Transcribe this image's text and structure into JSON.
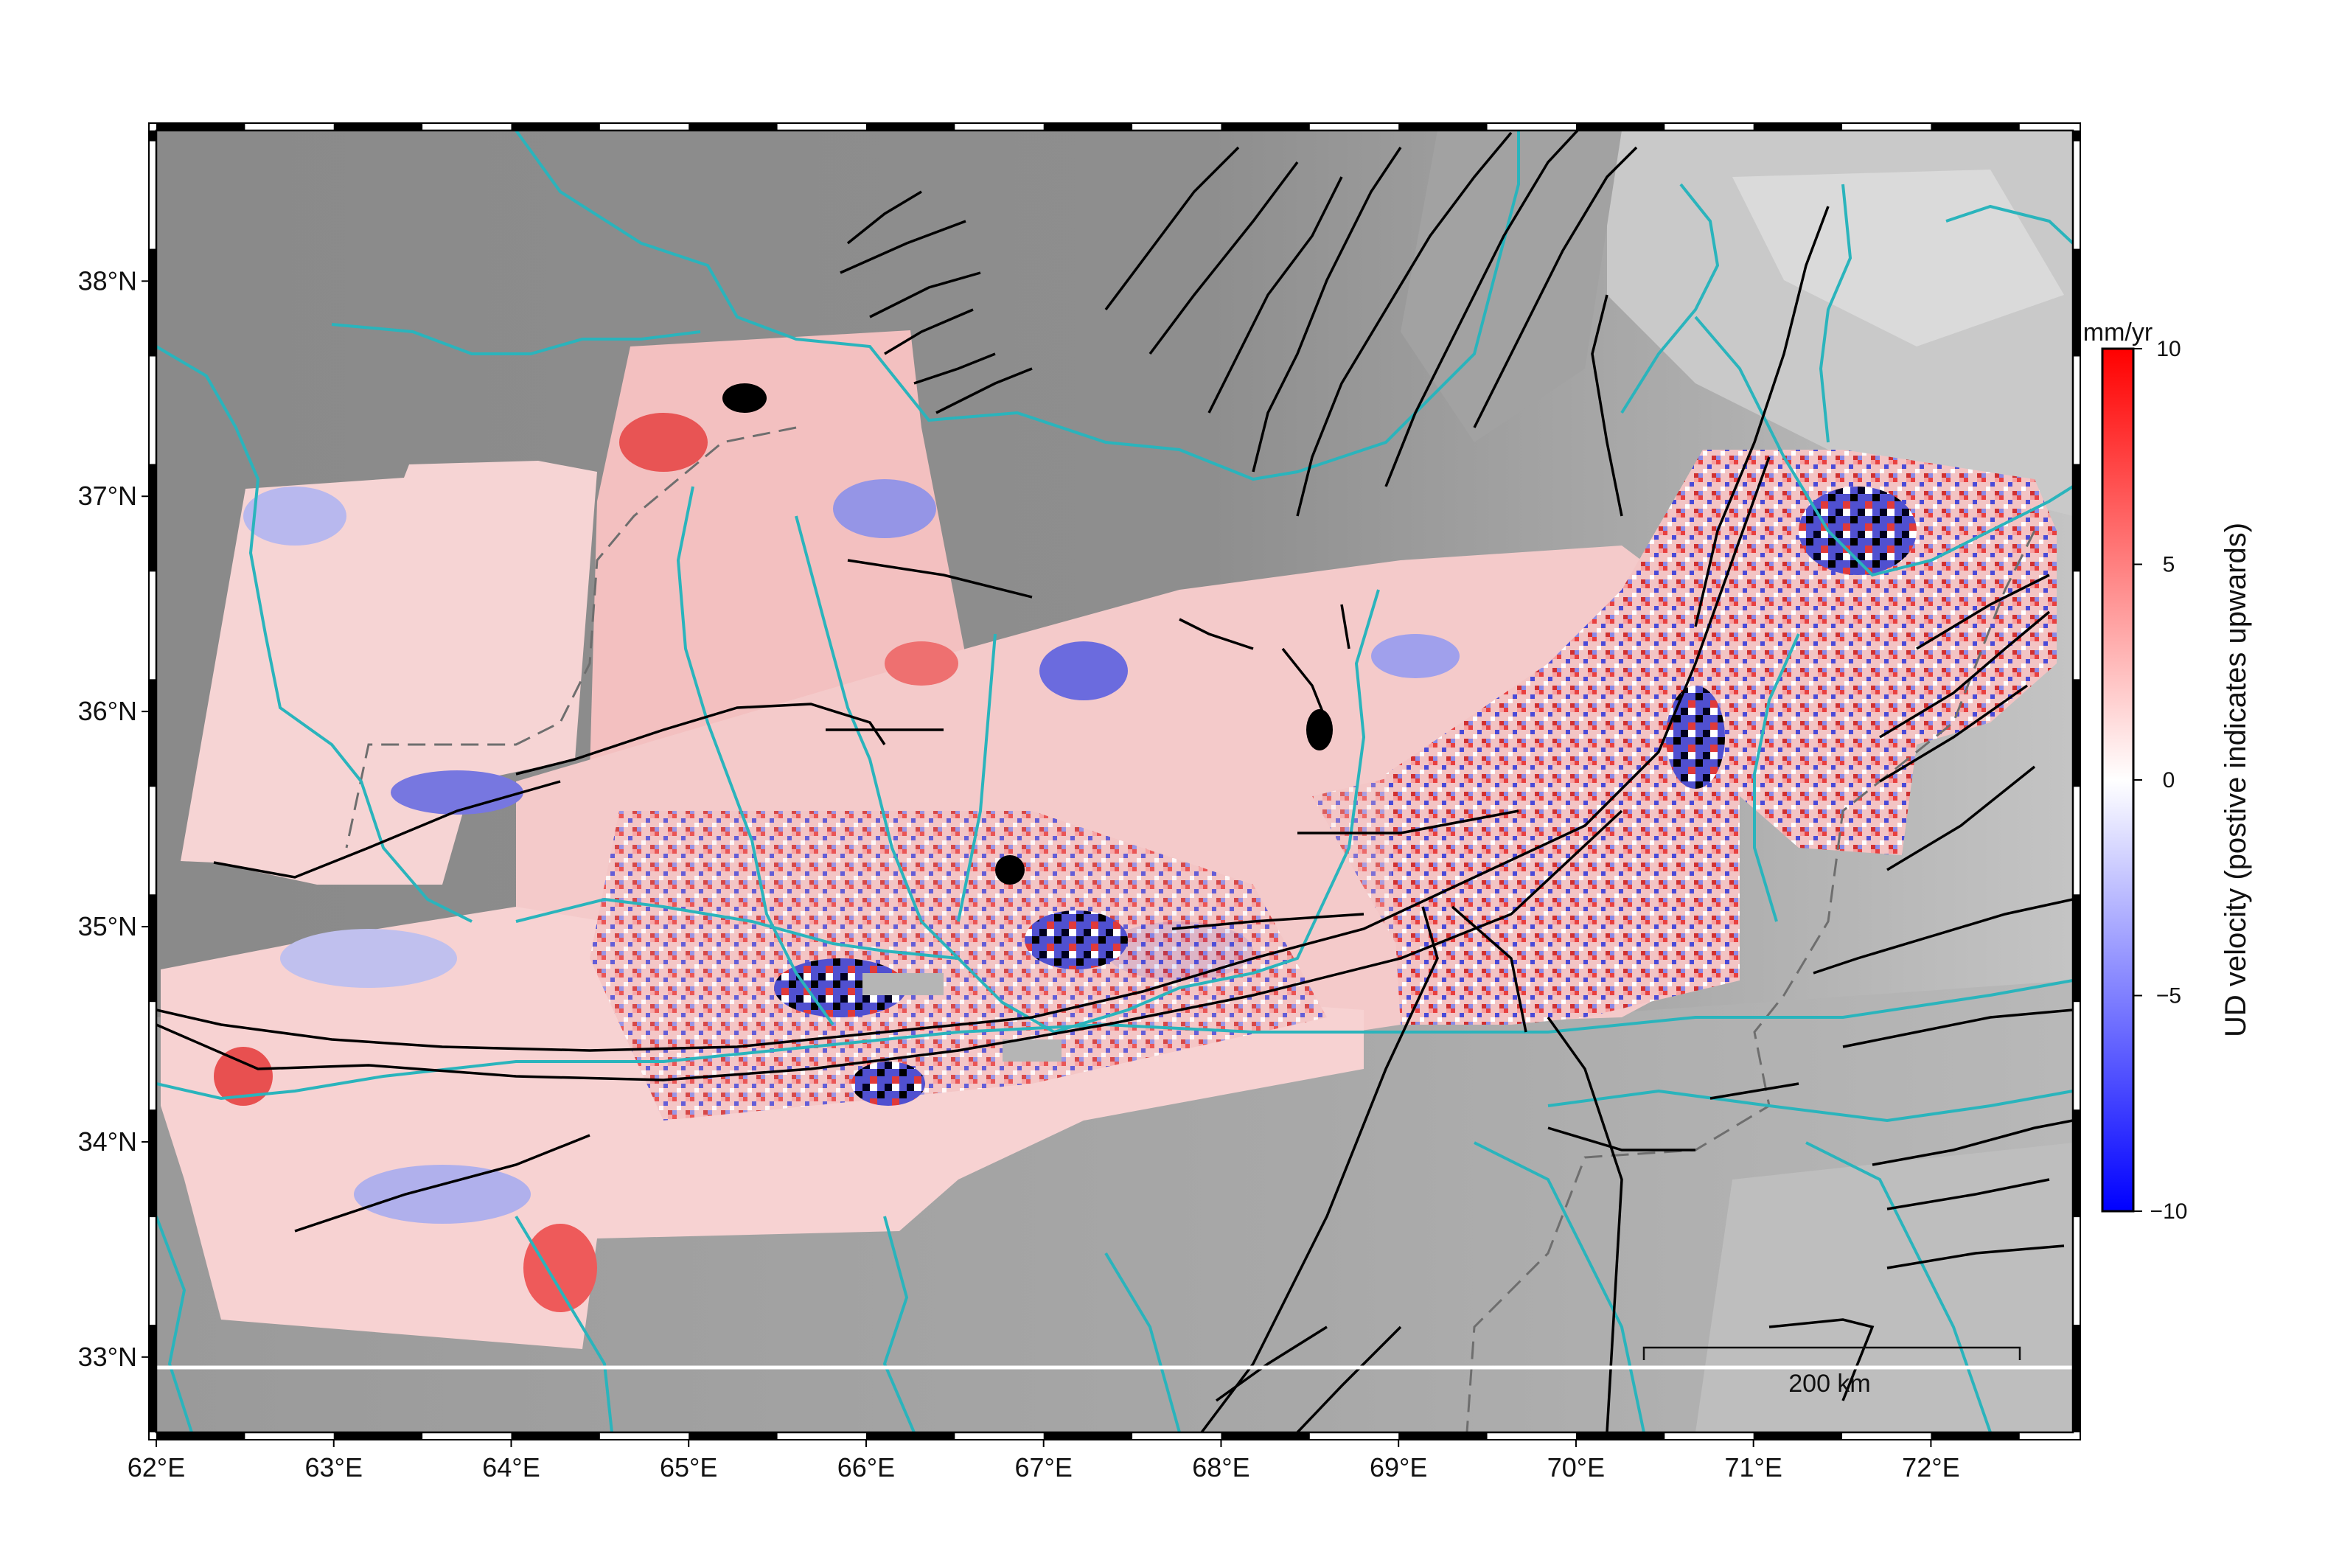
{
  "map": {
    "lon_range": [
      62,
      72.8
    ],
    "lat_range": [
      32.65,
      38.7
    ],
    "lon_ticks": [
      {
        "value": 62,
        "label": "62°E"
      },
      {
        "value": 63,
        "label": "63°E"
      },
      {
        "value": 64,
        "label": "64°E"
      },
      {
        "value": 65,
        "label": "65°E"
      },
      {
        "value": 66,
        "label": "66°E"
      },
      {
        "value": 67,
        "label": "67°E"
      },
      {
        "value": 68,
        "label": "68°E"
      },
      {
        "value": 69,
        "label": "69°E"
      },
      {
        "value": 70,
        "label": "70°E"
      },
      {
        "value": 71,
        "label": "71°E"
      },
      {
        "value": 72,
        "label": "72°E"
      }
    ],
    "lat_ticks": [
      {
        "value": 33,
        "label": "33°N"
      },
      {
        "value": 34,
        "label": "34°N"
      },
      {
        "value": 35,
        "label": "35°N"
      },
      {
        "value": 36,
        "label": "36°N"
      },
      {
        "value": 37,
        "label": "37°N"
      },
      {
        "value": 38,
        "label": "38°N"
      }
    ],
    "scale_bar": {
      "label": "200 km",
      "length_km": 200
    },
    "colors": {
      "background_dem": "#8c8c8c",
      "dem_light": "#d8d8d8",
      "rivers": "#2ab4bc",
      "faults": "#000000",
      "border": "#7a7a7a",
      "positive": "#ff0000",
      "negative": "#0000ff",
      "neutral": "#ffffff"
    }
  },
  "colorbar": {
    "title": "UD velocity (postive indicates upwards)",
    "unit": "mm/yr",
    "range": [
      -10,
      10
    ],
    "ticks": [
      {
        "value": 10,
        "label": "10"
      },
      {
        "value": 5,
        "label": "5"
      },
      {
        "value": 0,
        "label": "0"
      },
      {
        "value": -5,
        "label": "−5"
      },
      {
        "value": -10,
        "label": "−10"
      }
    ]
  }
}
